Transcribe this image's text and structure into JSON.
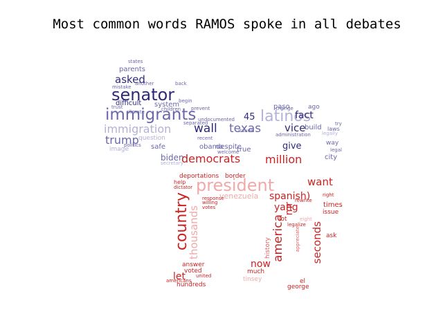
{
  "title": "Most common words RAMOS spoke in all debates",
  "colors": {
    "blue_dark": "#2e2a7a",
    "blue_mid": "#6a67aa",
    "blue_light": "#b3b1d6",
    "red_dark": "#cc2222",
    "red_mid": "#e46060",
    "red_light": "#f2a8a8"
  },
  "words": [
    {
      "text": "senator",
      "color": "blue_dark"
    },
    {
      "text": "immigrants",
      "color": "blue_mid"
    },
    {
      "text": "asked",
      "color": "blue_dark"
    },
    {
      "text": "immigration",
      "color": "blue_light"
    },
    {
      "text": "trump",
      "color": "blue_mid"
    },
    {
      "text": "wall",
      "color": "blue_dark"
    },
    {
      "text": "texas",
      "color": "blue_mid"
    },
    {
      "text": "45",
      "color": "blue_dark"
    },
    {
      "text": "latinos",
      "color": "blue_light"
    },
    {
      "text": "vice",
      "color": "blue_dark"
    },
    {
      "text": "fact",
      "color": "blue_dark"
    },
    {
      "text": "paso",
      "color": "blue_mid"
    },
    {
      "text": "ago",
      "color": "blue_mid"
    },
    {
      "text": "difficult",
      "color": "blue_dark"
    },
    {
      "text": "system",
      "color": "blue_mid"
    },
    {
      "text": "parents",
      "color": "blue_mid"
    },
    {
      "text": "biden",
      "color": "blue_mid"
    },
    {
      "text": "safe",
      "color": "blue_mid"
    },
    {
      "text": "give",
      "color": "blue_dark"
    },
    {
      "text": "despite",
      "color": "blue_mid"
    },
    {
      "text": "obama",
      "color": "blue_mid"
    },
    {
      "text": "true",
      "color": "blue_mid"
    },
    {
      "text": "build",
      "color": "blue_mid"
    },
    {
      "text": "way",
      "color": "blue_mid"
    },
    {
      "text": "city",
      "color": "blue_mid"
    },
    {
      "text": "question",
      "color": "blue_light"
    },
    {
      "text": "image",
      "color": "blue_light"
    },
    {
      "text": "democrats",
      "color": "red_dark"
    },
    {
      "text": "million",
      "color": "red_dark"
    },
    {
      "text": "president",
      "color": "red_light"
    },
    {
      "text": "want",
      "color": "red_dark"
    },
    {
      "text": "spanish)",
      "color": "red_dark"
    },
    {
      "text": "yang",
      "color": "red_dark"
    },
    {
      "text": "deportations",
      "color": "red_dark"
    },
    {
      "text": "border",
      "color": "red_dark"
    },
    {
      "text": "venezuela",
      "color": "red_light"
    },
    {
      "text": "country",
      "color": "red_dark"
    },
    {
      "text": "thousands",
      "color": "red_light"
    },
    {
      "text": "america",
      "color": "red_dark"
    },
    {
      "text": "mr",
      "color": "red_dark"
    },
    {
      "text": "seconds",
      "color": "red_dark"
    },
    {
      "text": "now",
      "color": "red_dark"
    },
    {
      "text": "let",
      "color": "red_dark"
    },
    {
      "text": "times",
      "color": "red_dark"
    },
    {
      "text": "issue",
      "color": "red_dark"
    },
    {
      "text": "lot",
      "color": "red_dark"
    },
    {
      "text": "ask",
      "color": "red_dark"
    },
    {
      "text": "answer",
      "color": "red_dark"
    },
    {
      "text": "voted",
      "color": "red_dark"
    },
    {
      "text": "hundreds",
      "color": "red_dark"
    },
    {
      "text": "much",
      "color": "red_dark"
    },
    {
      "text": "el",
      "color": "red_dark"
    },
    {
      "text": "george",
      "color": "red_dark"
    },
    {
      "text": "history",
      "color": "red_mid"
    },
    {
      "text": "help",
      "color": "red_dark"
    },
    {
      "text": "dictator",
      "color": "red_dark"
    },
    {
      "text": "tinsey",
      "color": "red_light"
    },
    {
      "text": "undocumented",
      "color": "blue_mid"
    },
    {
      "text": "separated",
      "color": "blue_mid"
    },
    {
      "text": "children",
      "color": "blue_mid"
    },
    {
      "text": "begin",
      "color": "blue_mid"
    },
    {
      "text": "back",
      "color": "blue_mid"
    },
    {
      "text": "another",
      "color": "blue_mid"
    },
    {
      "text": "mistake",
      "color": "blue_mid"
    },
    {
      "text": "trust",
      "color": "blue_mid"
    },
    {
      "text": "climate",
      "color": "blue_mid"
    },
    {
      "text": "states",
      "color": "blue_mid"
    },
    {
      "text": "recent",
      "color": "blue_mid"
    },
    {
      "text": "issues",
      "color": "blue_mid"
    },
    {
      "text": "change",
      "color": "blue_mid"
    },
    {
      "text": "administration",
      "color": "blue_mid"
    },
    {
      "text": "secretary",
      "color": "blue_light"
    },
    {
      "text": "welcome",
      "color": "blue_mid"
    },
    {
      "text": "united",
      "color": "red_dark"
    },
    {
      "text": "americans",
      "color": "red_dark"
    },
    {
      "text": "legalize",
      "color": "red_dark"
    },
    {
      "text": "right",
      "color": "red_dark"
    },
    {
      "text": "appreciate",
      "color": "red_mid"
    },
    {
      "text": "eight",
      "color": "red_light"
    },
    {
      "text": "rewrite",
      "color": "red_dark"
    },
    {
      "text": "willing",
      "color": "red_dark"
    },
    {
      "text": "votes",
      "color": "red_dark"
    },
    {
      "text": "response",
      "color": "red_dark"
    },
    {
      "text": "legally",
      "color": "blue_light"
    },
    {
      "text": "legal",
      "color": "blue_mid"
    },
    {
      "text": "laws",
      "color": "blue_mid"
    },
    {
      "text": "try",
      "color": "blue_mid"
    },
    {
      "text": "politics",
      "color": "blue_mid"
    },
    {
      "text": "prevent",
      "color": "blue_mid"
    }
  ]
}
